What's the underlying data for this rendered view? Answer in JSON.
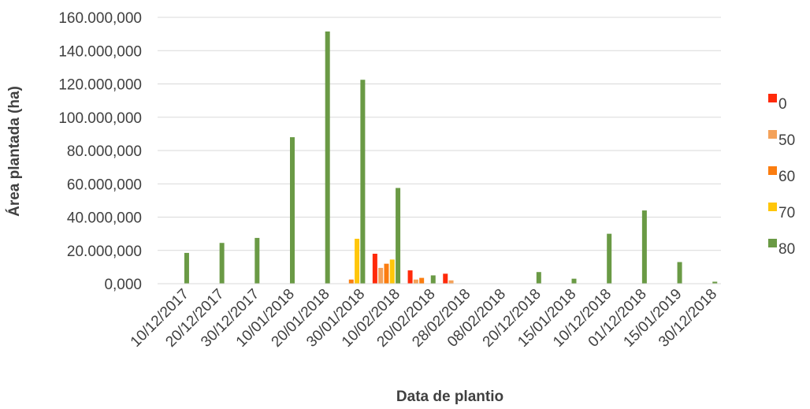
{
  "chart_data": {
    "type": "bar",
    "xlabel": "Data de plantio",
    "ylabel": "Área plantada (ha)",
    "ylim": [
      0,
      160
    ],
    "y_ticks": [
      0,
      20,
      40,
      60,
      80,
      100,
      120,
      140,
      160
    ],
    "y_tick_labels": [
      "0,000",
      "20.000,000",
      "40.000,000",
      "60.000,000",
      "80.000,000",
      "100.000,000",
      "120.000,000",
      "140.000,000",
      "160.000,000"
    ],
    "grid": true,
    "legend_position": "right",
    "categories": [
      "10/12/2017",
      "20/12/2017",
      "30/12/2017",
      "10/01/2018",
      "20/01/2018",
      "30/01/2018",
      "10/02/2018",
      "20/02/2018",
      "28/02/2018",
      "08/02/2018",
      "20/12/2018",
      "15/01/2018",
      "10/12/2018",
      "01/12/2018",
      "15/01/2019",
      "30/12/2018"
    ],
    "series": [
      {
        "name": "0",
        "color": "#ff2a0a",
        "values": [
          0,
          0,
          0,
          0,
          0,
          0,
          18,
          8,
          6,
          0,
          0,
          0,
          0,
          0,
          0,
          0
        ]
      },
      {
        "name": "50",
        "color": "#f4a25a",
        "values": [
          0,
          0,
          0,
          0,
          0,
          0,
          9.5,
          2.5,
          2,
          0,
          0,
          0,
          0,
          0,
          0,
          0
        ]
      },
      {
        "name": "60",
        "color": "#fb7d10",
        "values": [
          0,
          0,
          0,
          0,
          0,
          2.5,
          12,
          3.5,
          0,
          0,
          0,
          0,
          0,
          0,
          0,
          0
        ]
      },
      {
        "name": "70",
        "color": "#ffc60a",
        "values": [
          0,
          0,
          0,
          0,
          0,
          27,
          14.5,
          0,
          0,
          0,
          0,
          0,
          0,
          0,
          0,
          0
        ]
      },
      {
        "name": "80",
        "color": "#6a9a45",
        "values": [
          18.5,
          24.5,
          27.5,
          88,
          151.5,
          122.5,
          57.5,
          5,
          0,
          0,
          7,
          3,
          30,
          44,
          13,
          1.2
        ]
      }
    ]
  }
}
